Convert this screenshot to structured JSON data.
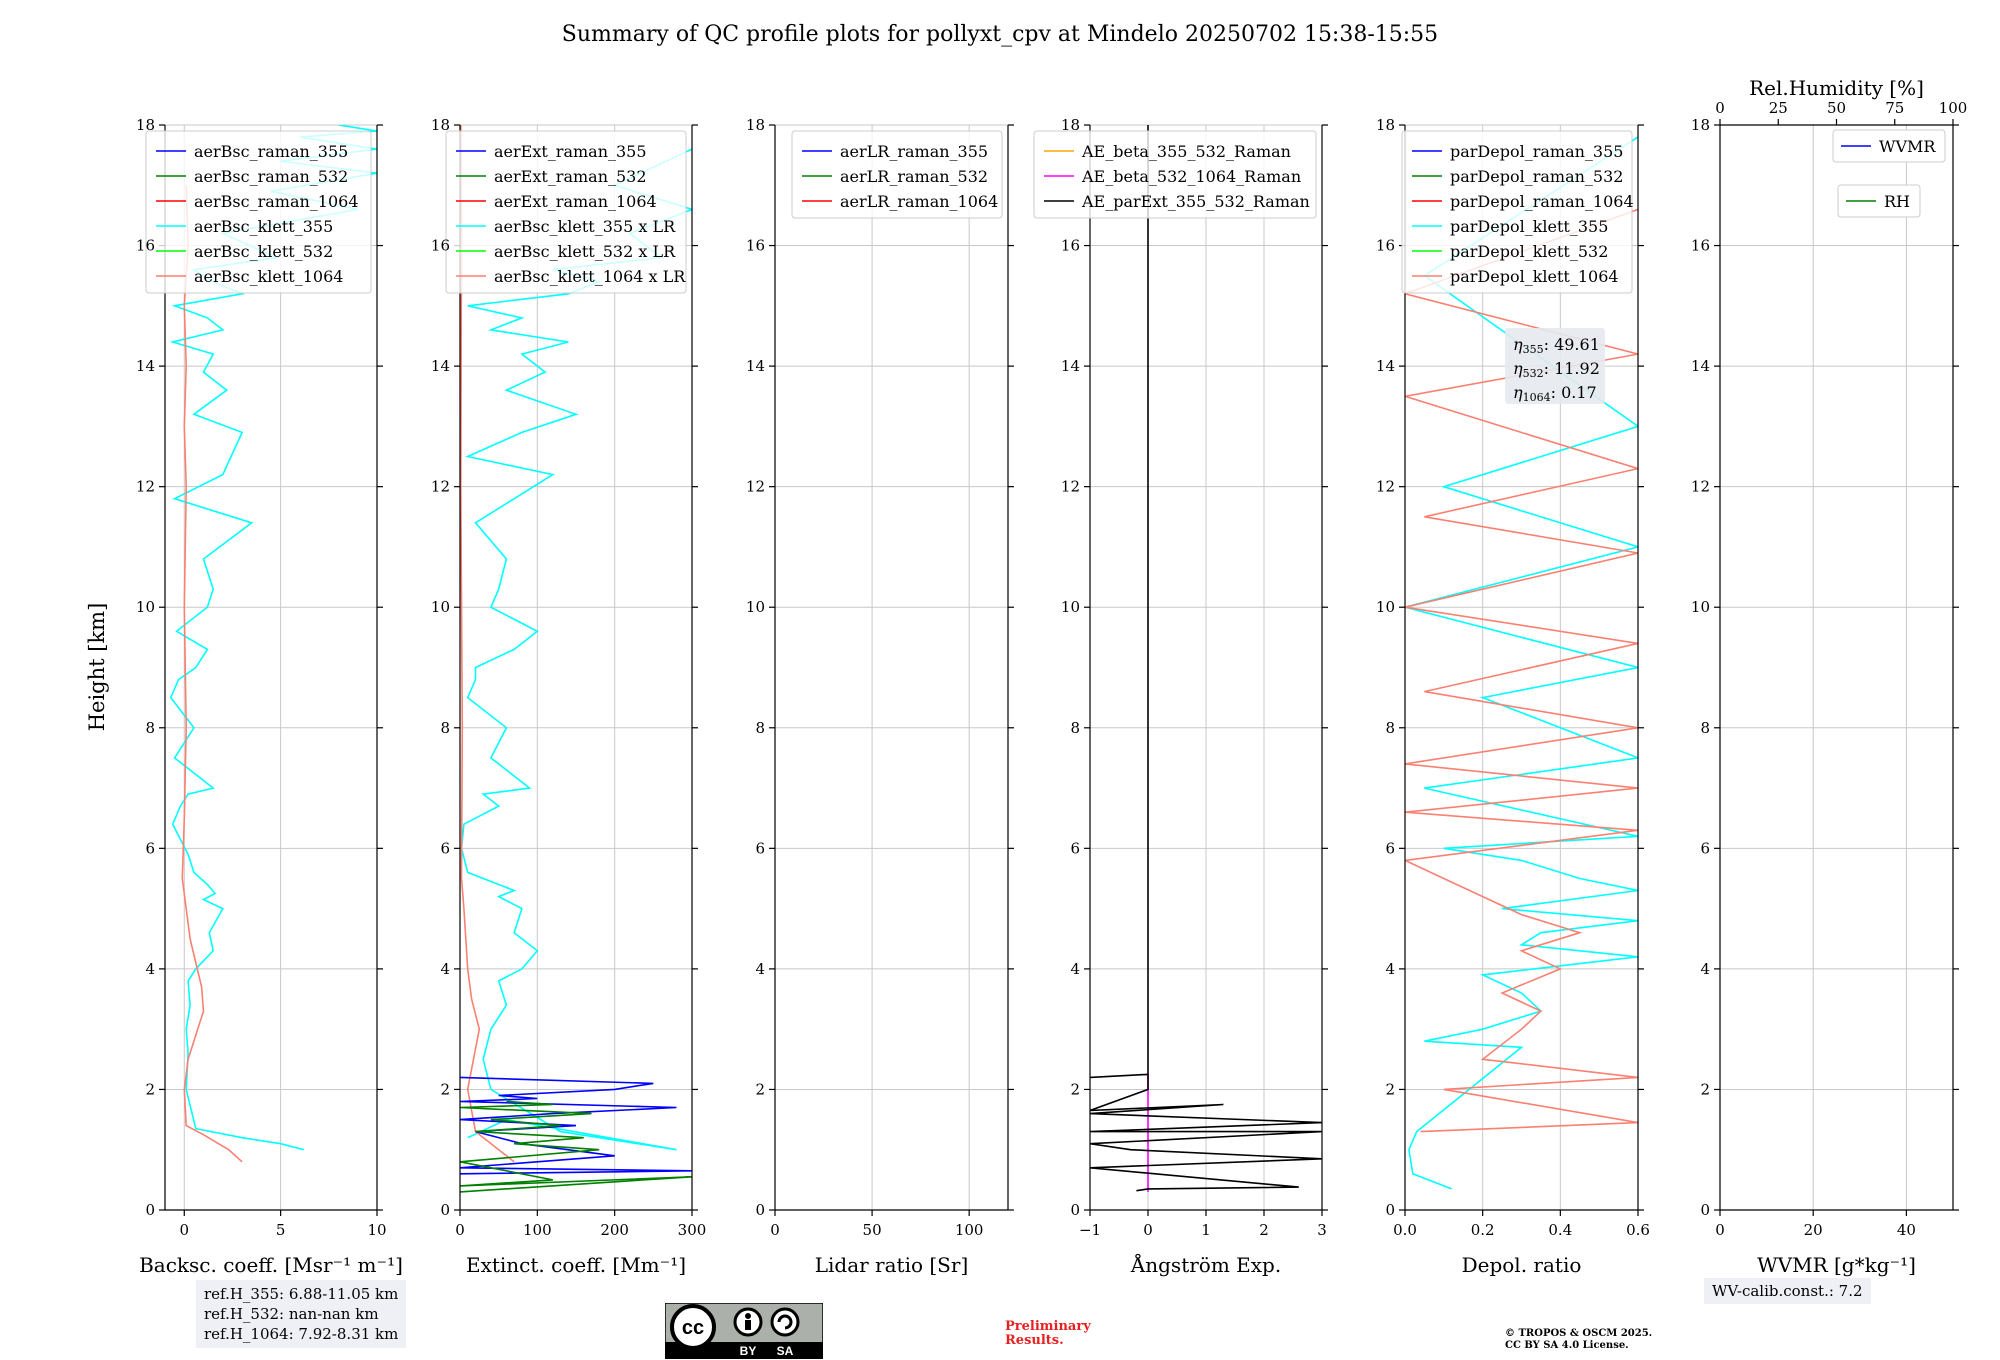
{
  "title": "Summary of QC profile plots for pollyxt_cpv at Mindelo 20250702 15:38-15:55",
  "ylabel": "Height [km]",
  "ref_heights": [
    "ref.H_355: 6.88-11.05 km",
    "ref.H_532: nan-nan km",
    "ref.H_1064: 7.92-8.31 km"
  ],
  "wv_calib": "WV-calib.const.: 7.2",
  "preliminary": [
    "Preliminary",
    "Results."
  ],
  "copyright": [
    "© TROPOS & OSCM 2025.",
    "CC BY SA 4.0 License."
  ],
  "cc_logo": {
    "cc": "cc",
    "by": "BY",
    "sa": "SA"
  },
  "colors": {
    "blue": "#0000ff",
    "green": "#008000",
    "red": "#ff0000",
    "cyan": "#00ffff",
    "lime": "#00ff00",
    "salmon": "#fa8072",
    "orange": "#ffa500",
    "magenta": "#ff00ff",
    "black": "#000000"
  },
  "chart_data": [
    {
      "type": "line",
      "xlabel": "Backsc. coeff. [Msr⁻¹ m⁻¹]",
      "xlim": [
        -1,
        10
      ],
      "ylim": [
        0,
        18
      ],
      "xticks": [
        0,
        5,
        10
      ],
      "yticks": [
        0,
        2,
        4,
        6,
        8,
        10,
        12,
        14,
        16,
        18
      ],
      "legend": [
        "aerBsc_raman_355",
        "aerBsc_raman_532",
        "aerBsc_raman_1064",
        "aerBsc_klett_355",
        "aerBsc_klett_532",
        "aerBsc_klett_1064"
      ],
      "legend_colors": [
        "blue",
        "green",
        "red",
        "cyan",
        "lime",
        "salmon"
      ],
      "legend_position": "top-right",
      "series": [
        {
          "name": "aerBsc_klett_355",
          "color": "cyan",
          "x": [
            6.2,
            5.0,
            3.0,
            0.6,
            0.1,
            0.2,
            0.1,
            0.3,
            0.2,
            0.6,
            1.5,
            1.3,
            2.0,
            1.0,
            1.6,
            1.2,
            0.5,
            0.2,
            -0.6,
            -0.2,
            0.2,
            1.5,
            -0.5,
            0.5,
            -0.7,
            -0.3,
            0.6,
            1.2,
            -0.4,
            1.2,
            1.5,
            1.0,
            3.5,
            -0.5,
            2.0,
            3.0,
            0.5,
            2.2,
            1.0,
            1.5,
            -0.6,
            2.0,
            1.2,
            -0.5,
            3.0,
            1.5,
            0.5,
            4.8,
            2.0,
            9.0,
            4.5,
            10.0,
            5.0,
            10.0,
            6.0,
            10.0,
            8.0
          ],
          "y": [
            1.0,
            1.1,
            1.2,
            1.35,
            2.0,
            2.6,
            3.0,
            3.4,
            3.8,
            4.0,
            4.3,
            4.6,
            5.0,
            5.15,
            5.25,
            5.4,
            5.6,
            5.9,
            6.4,
            6.7,
            6.9,
            7.0,
            7.5,
            8.0,
            8.5,
            8.8,
            9.0,
            9.3,
            9.6,
            10.0,
            10.3,
            10.8,
            11.4,
            11.8,
            12.2,
            12.9,
            13.2,
            13.6,
            13.9,
            14.2,
            14.4,
            14.6,
            14.8,
            15.0,
            15.2,
            15.4,
            15.6,
            15.8,
            16.2,
            16.6,
            16.9,
            17.2,
            17.4,
            17.6,
            17.8,
            17.9,
            18.0
          ]
        },
        {
          "name": "aerBsc_klett_1064",
          "color": "salmon",
          "x": [
            3.0,
            2.3,
            1.0,
            0.1,
            0.0,
            0.2,
            0.6,
            1.0,
            0.9,
            0.3,
            -0.1,
            0.0,
            0.1,
            0.0,
            0.1,
            0.0,
            0.1,
            0.0,
            0.2,
            0.1
          ],
          "y": [
            0.8,
            1.0,
            1.25,
            1.4,
            2.0,
            2.5,
            2.9,
            3.3,
            3.7,
            4.5,
            5.5,
            6.5,
            8.0,
            10.0,
            12.0,
            13.0,
            14.0,
            15.0,
            16.0,
            17.0
          ]
        }
      ]
    },
    {
      "type": "line",
      "xlabel": "Extinct. coeff. [Mm⁻¹]",
      "xlim": [
        0,
        300
      ],
      "ylim": [
        0,
        18
      ],
      "xticks": [
        0,
        100,
        200,
        300
      ],
      "yticks": [
        0,
        2,
        4,
        6,
        8,
        10,
        12,
        14,
        16,
        18
      ],
      "legend": [
        "aerExt_raman_355",
        "aerExt_raman_532",
        "aerExt_raman_1064",
        "aerBsc_klett_355 x LR",
        "aerBsc_klett_532 x LR",
        "aerBsc_klett_1064 x LR"
      ],
      "legend_colors": [
        "blue",
        "green",
        "red",
        "cyan",
        "lime",
        "salmon"
      ],
      "legend_position": "top-right",
      "series": [
        {
          "name": "aerBsc_klett_355 x LR",
          "color": "cyan",
          "x": [
            10,
            60,
            280,
            130,
            40,
            30,
            40,
            60,
            50,
            80,
            100,
            70,
            80,
            50,
            70,
            40,
            10,
            2,
            5,
            50,
            30,
            90,
            40,
            60,
            10,
            20,
            20,
            70,
            100,
            40,
            50,
            60,
            20,
            120,
            10,
            80,
            150,
            60,
            110,
            80,
            140,
            40,
            80,
            10,
            140,
            180,
            120,
            260,
            220,
            300,
            200,
            300
          ],
          "y": [
            1.2,
            1.5,
            1.0,
            1.3,
            2.0,
            2.5,
            3.0,
            3.4,
            3.8,
            4.0,
            4.3,
            4.6,
            5.0,
            5.2,
            5.3,
            5.45,
            5.6,
            6.0,
            6.4,
            6.7,
            6.9,
            7.0,
            7.5,
            8.0,
            8.5,
            8.8,
            9.0,
            9.3,
            9.6,
            10.0,
            10.3,
            10.8,
            11.4,
            12.2,
            12.5,
            12.9,
            13.2,
            13.6,
            13.9,
            14.2,
            14.4,
            14.6,
            14.8,
            15.0,
            15.2,
            15.4,
            15.6,
            15.8,
            16.2,
            16.6,
            17.0,
            17.6
          ]
        },
        {
          "name": "aerBsc_klett_1064 x LR",
          "color": "salmon",
          "x": [
            70,
            50,
            20,
            10,
            25,
            15,
            10,
            5,
            2,
            3,
            1,
            2,
            1
          ],
          "y": [
            0.8,
            1.0,
            1.3,
            2.0,
            3.0,
            3.5,
            4.0,
            5.0,
            5.5,
            8.0,
            12.0,
            16.0,
            18.0
          ]
        },
        {
          "name": "aerExt_raman_355",
          "color": "blue",
          "x": [
            0,
            300,
            0,
            200,
            80,
            20,
            150,
            0,
            120,
            280,
            0,
            100,
            50,
            200,
            250,
            0
          ],
          "y": [
            0.6,
            0.65,
            0.7,
            0.9,
            1.1,
            1.3,
            1.4,
            1.5,
            1.6,
            1.7,
            1.8,
            1.85,
            1.9,
            2.0,
            2.1,
            2.2
          ]
        },
        {
          "name": "aerExt_raman_532",
          "color": "green",
          "x": [
            0,
            300,
            0,
            120,
            0,
            180,
            70,
            160,
            20,
            130,
            40,
            170,
            0,
            120,
            60
          ],
          "y": [
            0.3,
            0.55,
            0.4,
            0.5,
            0.8,
            1.0,
            1.1,
            1.2,
            1.3,
            1.4,
            1.5,
            1.6,
            1.7,
            1.75,
            1.8
          ]
        }
      ]
    },
    {
      "type": "line",
      "xlabel": "Lidar ratio [Sr]",
      "xlim": [
        0,
        120
      ],
      "ylim": [
        0,
        18
      ],
      "xticks": [
        0,
        50,
        100
      ],
      "yticks": [
        0,
        2,
        4,
        6,
        8,
        10,
        12,
        14,
        16,
        18
      ],
      "legend": [
        "aerLR_raman_355",
        "aerLR_raman_532",
        "aerLR_raman_1064"
      ],
      "legend_colors": [
        "blue",
        "green",
        "red"
      ],
      "legend_position": "top-right",
      "series": []
    },
    {
      "type": "line",
      "xlabel": "Ångström Exp.",
      "xlim": [
        -1,
        3
      ],
      "ylim": [
        0,
        18
      ],
      "xticks": [
        -1,
        0,
        1,
        2,
        3
      ],
      "yticks": [
        0,
        2,
        4,
        6,
        8,
        10,
        12,
        14,
        16,
        18
      ],
      "legend": [
        "AE_beta_355_532_Raman",
        "AE_beta_532_1064_Raman",
        "AE_parExt_355_532_Raman"
      ],
      "legend_colors": [
        "orange",
        "magenta",
        "black"
      ],
      "legend_position": "top-right",
      "series": [
        {
          "name": "AE_beta_532_1064_Raman",
          "color": "magenta",
          "x": [
            0,
            0
          ],
          "y": [
            0.3,
            2.25
          ]
        },
        {
          "name": "AE_parExt_355_532_Raman",
          "color": "black",
          "x": [
            -0.2,
            0,
            2.6,
            -1.0,
            3.0,
            -0.3,
            -1.0,
            3.0,
            -1.0,
            3.0,
            -1.0,
            1.3,
            -1.0,
            0,
            0,
            -1.0
          ],
          "y": [
            0.32,
            0.35,
            0.38,
            0.7,
            0.85,
            1.0,
            1.1,
            1.3,
            1.3,
            1.45,
            1.6,
            1.75,
            1.65,
            2.0,
            2.25,
            2.2
          ]
        },
        {
          "name": "AE_parExt_355_532_Raman upper",
          "color": "black",
          "x": [
            0,
            0
          ],
          "y": [
            2.25,
            18
          ]
        }
      ]
    },
    {
      "type": "line",
      "xlabel": "Depol. ratio",
      "xlim": [
        0,
        0.6
      ],
      "ylim": [
        0,
        18
      ],
      "xticks": [
        0.0,
        0.2,
        0.4,
        0.6
      ],
      "yticks": [
        0,
        2,
        4,
        6,
        8,
        10,
        12,
        14,
        16,
        18
      ],
      "legend": [
        "parDepol_raman_355",
        "parDepol_raman_532",
        "parDepol_raman_1064",
        "parDepol_klett_355",
        "parDepol_klett_532",
        "parDepol_klett_1064"
      ],
      "legend_colors": [
        "blue",
        "green",
        "red",
        "cyan",
        "lime",
        "salmon"
      ],
      "legend_position": "top-right",
      "annotation": [
        {
          "label": "η355",
          "value": ": 49.61"
        },
        {
          "label": "η532",
          "value": ": 11.92"
        },
        {
          "label": "η1064",
          "value": ": 0.17"
        }
      ],
      "series": [
        {
          "name": "parDepol_klett_355",
          "color": "cyan",
          "x": [
            0.12,
            0.02,
            0.01,
            0.03,
            0.3,
            0.05,
            0.2,
            0.35,
            0.3,
            0.2,
            0.6,
            0.3,
            0.35,
            0.6,
            0.25,
            0.6,
            0.45,
            0.3,
            0.1,
            0.6,
            0.05,
            0.6,
            0.2,
            0.6,
            0.0,
            0.6,
            0.1,
            0.6,
            0.05,
            0.6
          ],
          "y": [
            0.35,
            0.6,
            1.0,
            1.3,
            2.7,
            2.8,
            3.0,
            3.3,
            3.6,
            3.9,
            4.2,
            4.4,
            4.6,
            4.8,
            5.0,
            5.3,
            5.5,
            5.8,
            6.0,
            6.2,
            7.0,
            7.5,
            8.5,
            9.0,
            10.0,
            11.0,
            12.0,
            13.0,
            15.5,
            17.8
          ]
        },
        {
          "name": "parDepol_klett_1064",
          "color": "salmon",
          "x": [
            0.04,
            0.6,
            0.1,
            0.6,
            0.2,
            0.3,
            0.35,
            0.25,
            0.4,
            0.3,
            0.45,
            0.3,
            0.2,
            0.1,
            0.0,
            0.6,
            0.0,
            0.6,
            0.0,
            0.6,
            0.05,
            0.6,
            0.0,
            0.6,
            0.05,
            0.6,
            0.0,
            0.6,
            0.0,
            0.6
          ],
          "y": [
            1.3,
            1.45,
            2.0,
            2.2,
            2.5,
            3.0,
            3.3,
            3.6,
            4.0,
            4.3,
            4.6,
            4.9,
            5.2,
            5.5,
            5.8,
            6.3,
            6.6,
            7.0,
            7.4,
            8.0,
            8.6,
            9.4,
            10.0,
            10.9,
            11.5,
            12.3,
            13.5,
            14.2,
            15.2,
            16.6
          ]
        }
      ]
    },
    {
      "type": "line",
      "xlabel": "WVMR [g*kg⁻¹]",
      "x2label": "Rel.Humidity [%]",
      "xlim": [
        0,
        50
      ],
      "x2lim": [
        0,
        100
      ],
      "ylim": [
        0,
        18
      ],
      "xticks": [
        0,
        20,
        40
      ],
      "x2ticks": [
        0,
        25,
        50,
        75,
        100
      ],
      "yticks": [
        0,
        2,
        4,
        6,
        8,
        10,
        12,
        14,
        16,
        18
      ],
      "legend": [
        "WVMR",
        "RH"
      ],
      "legend_colors": [
        "blue",
        "green"
      ],
      "legend_position": "top-right",
      "series": []
    }
  ]
}
